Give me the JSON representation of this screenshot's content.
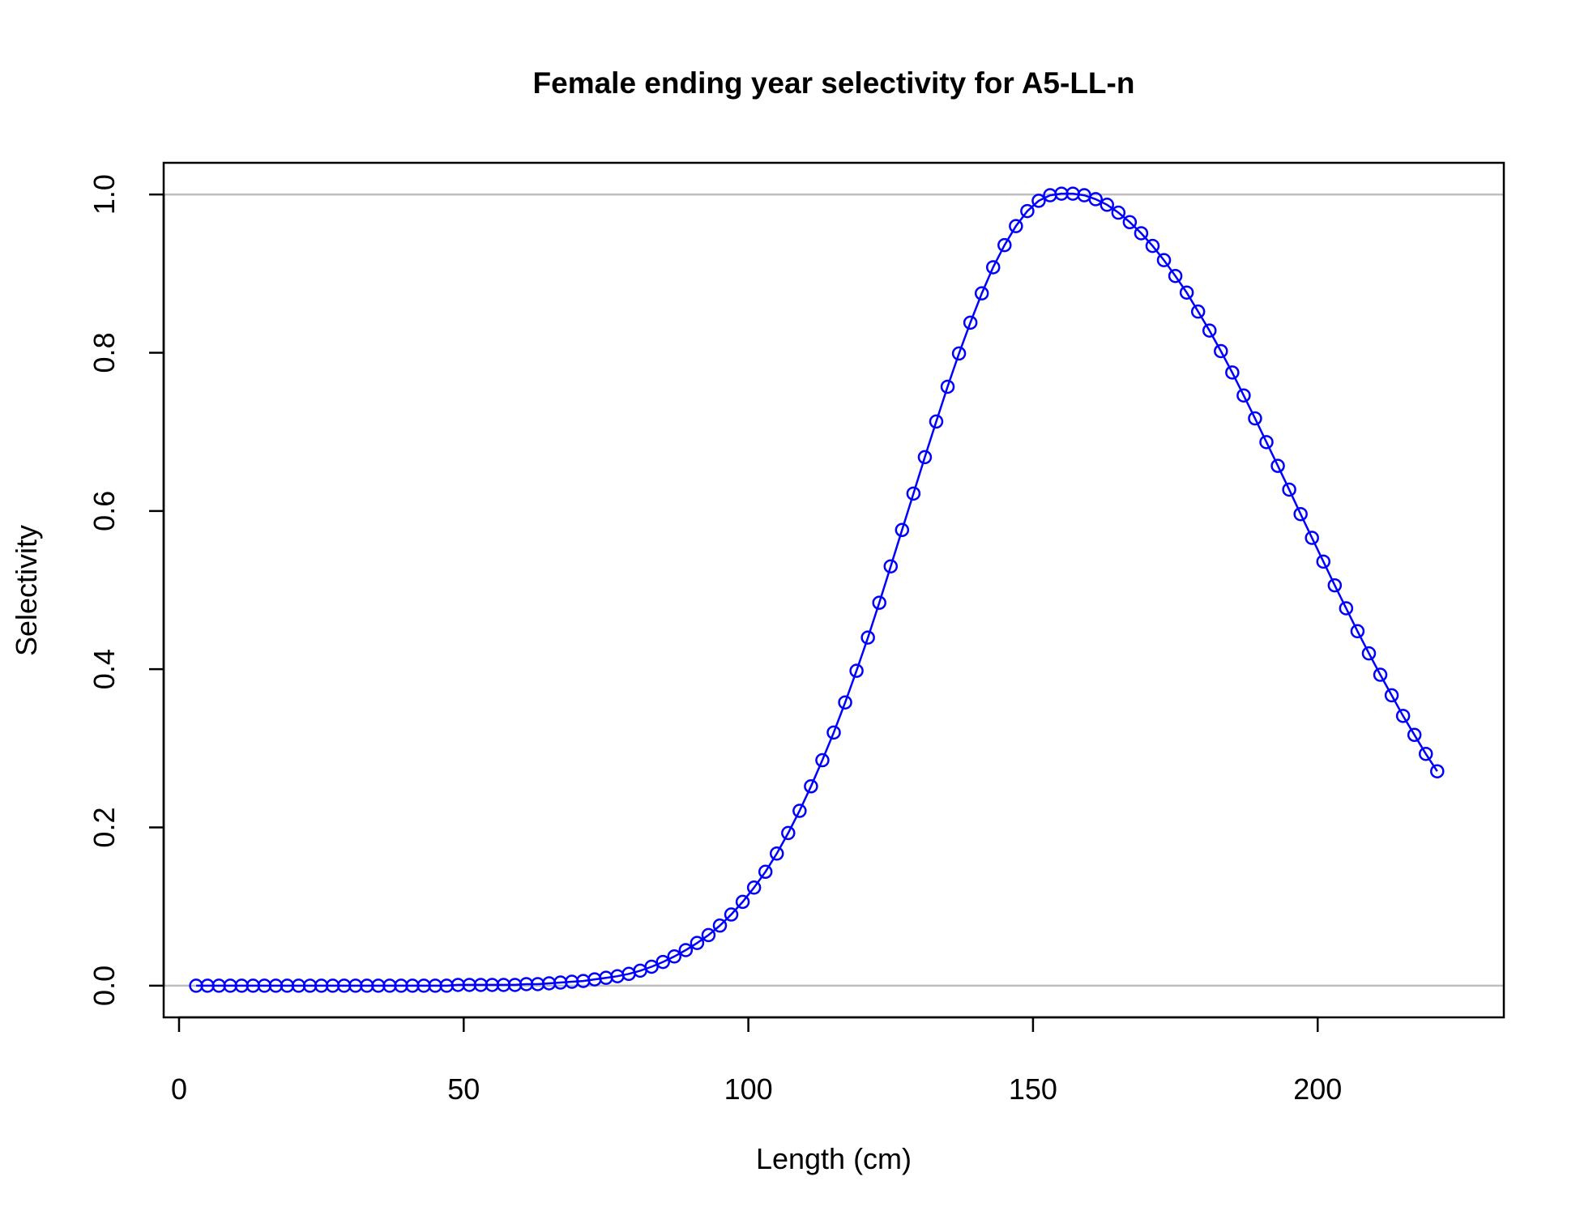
{
  "chart_data": {
    "type": "line",
    "title": "Female ending year selectivity for A5-LL-n",
    "xlabel": "Length (cm)",
    "ylabel": "Selectivity",
    "xlim": [
      -2.7,
      232.7
    ],
    "ylim": [
      -0.04,
      1.04
    ],
    "x_ticks": [
      0,
      50,
      100,
      150,
      200
    ],
    "x_tick_labels": [
      "0",
      "50",
      "100",
      "150",
      "200"
    ],
    "y_ticks": [
      0,
      0.2,
      0.4,
      0.6,
      0.8,
      1.0
    ],
    "y_tick_labels": [
      "0.0",
      "0.2",
      "0.4",
      "0.6",
      "0.8",
      "1.0"
    ],
    "reference_lines_y": [
      0,
      1
    ],
    "grid": false,
    "legend": "none",
    "colors": {
      "series": "#0000ff",
      "reference": "#bebebe",
      "axes": "#000000"
    },
    "marker": "open-circle",
    "series": [
      {
        "x": [
          3,
          5,
          7,
          9,
          11,
          13,
          15,
          17,
          19,
          21,
          23,
          25,
          27,
          29,
          31,
          33,
          35,
          37,
          39,
          41,
          43,
          45,
          47,
          49,
          51,
          53,
          55,
          57,
          59,
          61,
          63,
          65,
          67,
          69,
          71,
          73,
          75,
          77,
          79,
          81,
          83,
          85,
          87,
          89,
          91,
          93,
          95,
          97,
          99,
          101,
          103,
          105,
          107,
          109,
          111,
          113,
          115,
          117,
          119,
          121,
          123,
          125,
          127,
          129,
          131,
          133,
          135,
          137,
          139,
          141,
          143,
          145,
          147,
          149,
          151,
          153,
          155,
          157,
          159,
          161,
          163,
          165,
          167,
          169,
          171,
          173,
          175,
          177,
          179,
          181,
          183,
          185,
          187,
          189,
          191,
          193,
          195,
          197,
          199,
          201,
          203,
          205,
          207,
          209,
          211,
          213,
          215,
          217,
          219,
          221
        ],
        "y": [
          0,
          0,
          0,
          0,
          0,
          0,
          0,
          0,
          0,
          0,
          0,
          0,
          0,
          0,
          0,
          0,
          0,
          0,
          0,
          0,
          0,
          0,
          0,
          0.001,
          0.001,
          0.001,
          0.001,
          0.001,
          0.001,
          0.002,
          0.002,
          0.003,
          0.004,
          0.005,
          0.006,
          0.008,
          0.01,
          0.012,
          0.015,
          0.019,
          0.024,
          0.03,
          0.037,
          0.045,
          0.054,
          0.064,
          0.076,
          0.09,
          0.106,
          0.124,
          0.144,
          0.167,
          0.193,
          0.221,
          0.252,
          0.285,
          0.32,
          0.358,
          0.398,
          0.44,
          0.484,
          0.53,
          0.576,
          0.622,
          0.668,
          0.713,
          0.757,
          0.799,
          0.838,
          0.875,
          0.908,
          0.936,
          0.96,
          0.979,
          0.992,
          0.999,
          1.001,
          1.001,
          0.999,
          0.994,
          0.987,
          0.977,
          0.965,
          0.951,
          0.935,
          0.917,
          0.897,
          0.876,
          0.852,
          0.828,
          0.802,
          0.775,
          0.746,
          0.717,
          0.687,
          0.657,
          0.627,
          0.596,
          0.566,
          0.536,
          0.506,
          0.477,
          0.448,
          0.42,
          0.393,
          0.367,
          0.341,
          0.317,
          0.293,
          0.271
        ]
      }
    ]
  }
}
